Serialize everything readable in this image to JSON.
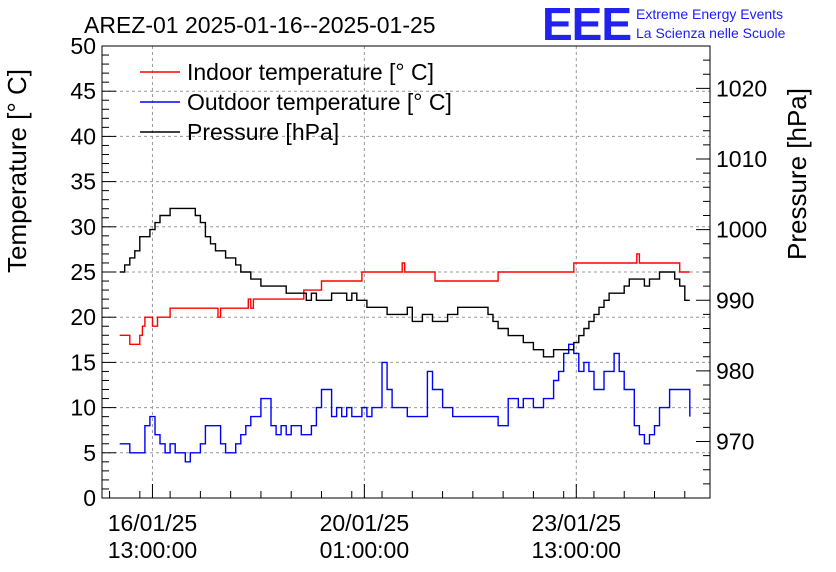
{
  "header": {
    "title": "AREZ-01 2025-01-16--2025-01-25",
    "logo_text": "EEE",
    "brand_line1": "Extreme Energy Events",
    "brand_line2": "La Scienza nelle Scuole"
  },
  "colors": {
    "indoor": "#ff0000",
    "outdoor": "#0000ff",
    "pressure": "#000000",
    "grid": "#999999",
    "logo": "#2222ee"
  },
  "chart_data": {
    "type": "line",
    "title": "AREZ-01 2025-01-16--2025-01-25",
    "xlabel": "",
    "ylabel_left": "Temperature [° C]",
    "ylabel_right": "Pressure [hPa]",
    "ylim_left": [
      0,
      50
    ],
    "ylim_right": [
      962,
      1026
    ],
    "y_ticks_left": [
      "0",
      "5",
      "10",
      "15",
      "20",
      "25",
      "30",
      "35",
      "40",
      "45",
      "50"
    ],
    "y_ticks_right": [
      "970",
      "980",
      "990",
      "1000",
      "1010",
      "1020"
    ],
    "x_unit": "hours since 2025-01-16 00:00",
    "xlim": [
      -7,
      234
    ],
    "x_major_ticks": [
      {
        "x": 13,
        "label": [
          "16/01/25",
          "13:00:00"
        ]
      },
      {
        "x": 97,
        "label": [
          "20/01/25",
          "01:00:00"
        ]
      },
      {
        "x": 181,
        "label": [
          "23/01/25",
          "13:00:00"
        ]
      }
    ],
    "grid": true,
    "legend_position": "top-left",
    "series": [
      {
        "name": "Indoor temperature [° C]",
        "axis": "left",
        "color": "#ff0000",
        "x": [
          0,
          2,
          4,
          6,
          8,
          9,
          10,
          12,
          13,
          15,
          20,
          30,
          38,
          39,
          40,
          45,
          50,
          51,
          52,
          53,
          56,
          60,
          70,
          73,
          74,
          78,
          80,
          85,
          95,
          96,
          97,
          105,
          110,
          112,
          113,
          114,
          115,
          120,
          125,
          135,
          140,
          150,
          165,
          175,
          180,
          185,
          200,
          205,
          206,
          210,
          215,
          218,
          222,
          226
        ],
        "y": [
          18,
          18,
          17,
          17,
          18,
          19,
          20,
          20,
          19,
          20,
          21,
          21,
          21,
          20,
          21,
          21,
          21,
          22,
          21,
          22,
          22,
          22,
          22,
          23,
          23,
          23,
          24,
          24,
          24,
          25,
          25,
          25,
          25,
          26,
          25,
          25,
          25,
          25,
          24,
          24,
          24,
          25,
          25,
          25,
          26,
          26,
          26,
          27,
          26,
          26,
          26,
          26,
          25,
          25
        ]
      },
      {
        "name": "Outdoor temperature [° C]",
        "axis": "left",
        "color": "#0000ff",
        "x": [
          0,
          2,
          4,
          8,
          10,
          12,
          14,
          16,
          18,
          20,
          22,
          24,
          26,
          28,
          30,
          32,
          34,
          36,
          40,
          42,
          44,
          46,
          48,
          50,
          52,
          56,
          60,
          62,
          64,
          66,
          68,
          72,
          76,
          78,
          80,
          84,
          86,
          88,
          90,
          92,
          94,
          96,
          98,
          100,
          104,
          106,
          108,
          110,
          112,
          114,
          118,
          122,
          124,
          128,
          130,
          132,
          134,
          150,
          154,
          158,
          160,
          164,
          168,
          172,
          174,
          176,
          178,
          180,
          182,
          184,
          186,
          188,
          192,
          196,
          198,
          200,
          204,
          206,
          208,
          210,
          212,
          214,
          218,
          222,
          226
        ],
        "y": [
          6,
          6,
          5,
          5,
          8,
          9,
          7,
          6,
          5,
          6,
          5,
          5,
          4,
          5,
          5,
          6,
          8,
          8,
          6,
          5,
          5,
          6,
          7,
          8,
          9,
          11,
          8,
          7,
          8,
          7,
          8,
          7,
          8,
          10,
          12,
          9,
          10,
          9,
          10,
          9,
          9,
          10,
          9,
          10,
          15,
          12,
          10,
          10,
          10,
          9,
          9,
          14,
          12,
          10,
          10,
          9,
          9,
          8,
          11,
          10,
          11,
          10,
          11,
          13,
          14,
          16,
          17,
          16,
          14,
          15,
          14,
          12,
          14,
          16,
          14,
          12,
          8,
          7,
          6,
          7,
          8,
          10,
          12,
          12,
          9
        ]
      },
      {
        "name": "Pressure [hPa]",
        "axis": "right",
        "color": "#000000",
        "x": [
          0,
          2,
          4,
          6,
          8,
          10,
          12,
          14,
          16,
          18,
          20,
          22,
          24,
          26,
          28,
          30,
          32,
          34,
          36,
          38,
          40,
          42,
          44,
          46,
          48,
          50,
          52,
          54,
          56,
          58,
          60,
          62,
          64,
          66,
          68,
          70,
          72,
          74,
          76,
          78,
          80,
          82,
          84,
          86,
          88,
          90,
          92,
          94,
          96,
          98,
          100,
          102,
          104,
          106,
          108,
          110,
          112,
          114,
          116,
          118,
          120,
          122,
          124,
          126,
          130,
          134,
          138,
          142,
          144,
          146,
          148,
          150,
          152,
          154,
          156,
          158,
          160,
          162,
          164,
          166,
          168,
          170,
          172,
          174,
          176,
          178,
          180,
          182,
          184,
          186,
          188,
          190,
          192,
          194,
          196,
          198,
          200,
          202,
          204,
          206,
          208,
          210,
          212,
          214,
          216,
          218,
          220,
          222,
          224,
          226
        ],
        "y": [
          994,
          995,
          996,
          997,
          999,
          999,
          1000,
          1001,
          1002,
          1002,
          1003,
          1003,
          1003,
          1003,
          1003,
          1002,
          1001,
          999,
          998,
          997,
          997,
          996,
          996,
          995,
          994,
          994,
          993,
          993,
          992,
          992,
          992,
          992,
          992,
          991,
          991,
          991,
          991,
          990,
          991,
          990,
          990,
          990,
          991,
          991,
          991,
          990,
          991,
          990,
          990,
          989,
          989,
          989,
          989,
          988,
          988,
          988,
          988,
          989,
          987,
          987,
          988,
          988,
          987,
          987,
          988,
          989,
          989,
          989,
          989,
          988,
          987,
          986,
          986,
          985,
          985,
          985,
          984,
          984,
          983,
          983,
          982,
          982,
          983,
          983,
          983,
          983,
          984,
          985,
          986,
          987,
          988,
          989,
          990,
          991,
          991,
          991,
          992,
          993,
          993,
          993,
          992,
          993,
          993,
          994,
          994,
          994,
          993,
          992,
          990,
          990
        ]
      }
    ]
  }
}
